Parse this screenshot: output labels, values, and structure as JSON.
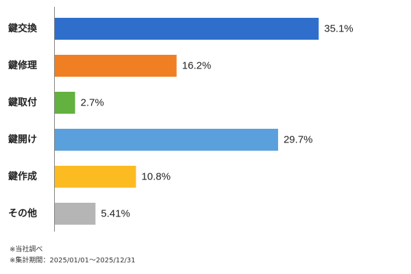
{
  "chart_data": {
    "type": "bar",
    "orientation": "horizontal",
    "categories": [
      "鍵交換",
      "鍵修理",
      "鍵取付",
      "鍵開け",
      "鍵作成",
      "その他"
    ],
    "values": [
      35.1,
      16.2,
      2.7,
      29.7,
      10.8,
      5.41
    ],
    "value_labels": [
      "35.1%",
      "16.2%",
      "2.7%",
      "29.7%",
      "10.8%",
      "5.41%"
    ],
    "colors": [
      "#2f6fcb",
      "#f07f23",
      "#63b13f",
      "#5aa0dc",
      "#fdbb22",
      "#b5b5b5"
    ],
    "xlim": [
      0,
      36.9
    ],
    "grid": false,
    "legend": "none"
  },
  "notes": [
    "※当社調べ",
    "※集計期間：2025/01/01～2025/12/31"
  ]
}
